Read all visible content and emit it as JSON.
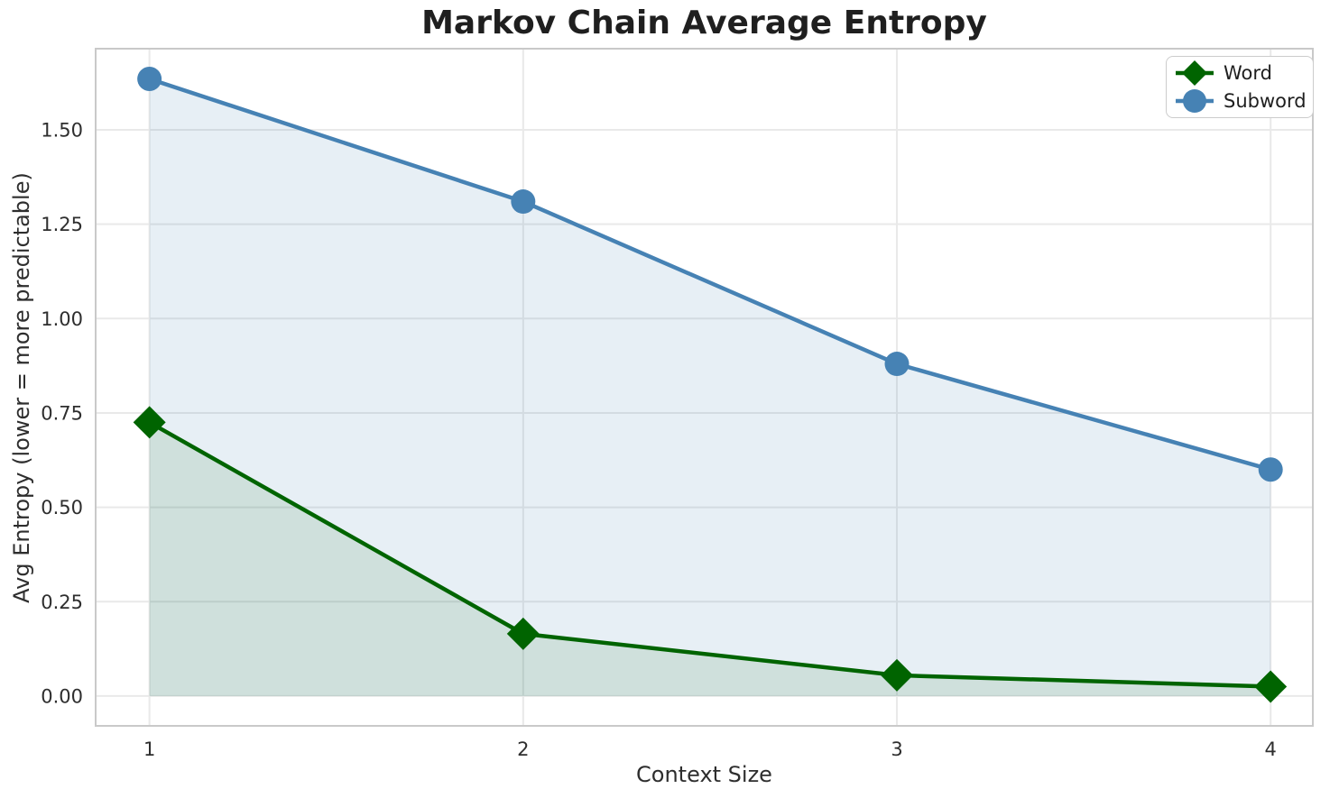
{
  "chart_data": {
    "type": "line",
    "title": "Markov Chain Average Entropy",
    "xlabel": "Context Size",
    "ylabel": "Avg Entropy (lower = more predictable)",
    "x": [
      1,
      2,
      3,
      4
    ],
    "series": [
      {
        "name": "Word",
        "values": [
          0.725,
          0.165,
          0.055,
          0.025
        ],
        "color": "#006400",
        "marker": "diamond",
        "fill_color": "rgba(0,100,0,0.10)"
      },
      {
        "name": "Subword",
        "values": [
          1.635,
          1.31,
          0.88,
          0.6
        ],
        "color": "#4682b4",
        "marker": "circle",
        "fill_color": "rgba(70,130,180,0.13)"
      }
    ],
    "area_fill_to_zero": true,
    "xtick_labels": [
      "1",
      "2",
      "3",
      "4"
    ],
    "xtick_values": [
      1,
      2,
      3,
      4
    ],
    "ytick_labels": [
      "0.00",
      "0.25",
      "0.50",
      "0.75",
      "1.00",
      "1.25",
      "1.50"
    ],
    "ytick_values": [
      0,
      0.25,
      0.5,
      0.75,
      1.0,
      1.25,
      1.5
    ],
    "xlim": [
      0.856,
      4.113
    ],
    "ylim": [
      -0.079,
      1.715
    ],
    "grid": true,
    "legend_position": "upper right",
    "style": {
      "grid_color": "#e9e9e9",
      "spine_color": "#c9c9c9",
      "background": "#ffffff",
      "text_color": "#2e2e2e",
      "line_width": 4.5,
      "circle_radius": 13.5,
      "diamond_half": 18
    }
  }
}
